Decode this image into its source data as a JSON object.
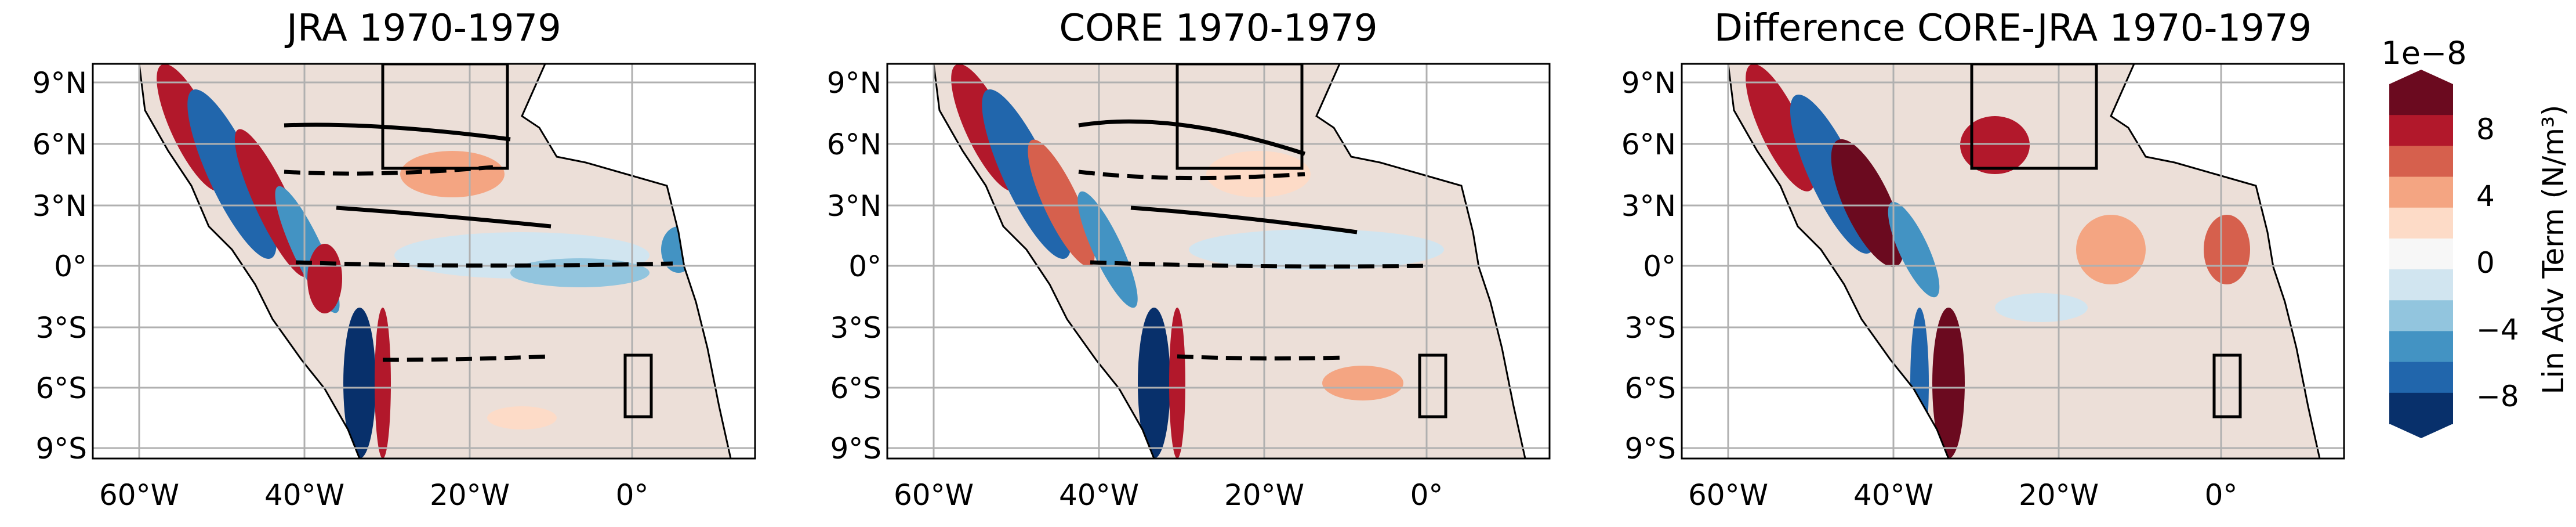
{
  "panels": [
    {
      "title": "JRA 1970-1979"
    },
    {
      "title": "CORE 1970-1979"
    },
    {
      "title": "Difference CORE-JRA 1970-1979"
    }
  ],
  "axes": {
    "x_ticks": [
      "60°W",
      "40°W",
      "20°W",
      "0°"
    ],
    "y_ticks": [
      "9°N",
      "6°N",
      "3°N",
      "0°",
      "3°S",
      "6°S",
      "9°S"
    ]
  },
  "colorbar": {
    "label": "Lin Adv Term (N/m³)",
    "exponent": "1e−8",
    "ticks": [
      "8",
      "4",
      "0",
      "−4",
      "−8"
    ],
    "colors": [
      "#6b0a1f",
      "#b2182b",
      "#d6604d",
      "#f4a582",
      "#fddbc7",
      "#f7f7f7",
      "#d1e5f0",
      "#92c5de",
      "#4393c3",
      "#2166ac",
      "#08306b"
    ]
  },
  "colors": {
    "land": "#ffffff",
    "ocean_base": "#ecdfd8",
    "grid": "#b0b0b0"
  }
}
